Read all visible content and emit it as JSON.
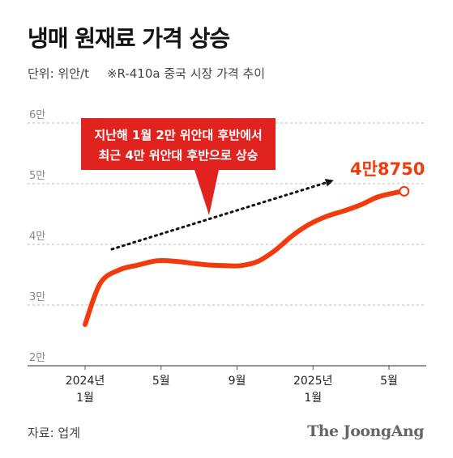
{
  "title": "냉매 원재료 가격 상승",
  "unit_label": "단위: 위안/t",
  "note": "※R-410a 중국 시장 가격 추이",
  "source": "자료: 업계",
  "brand": "The JoongAng",
  "callout": {
    "line1": "지난해 1월 2만 위안대 후반에서",
    "line2": "최근 4만 위안대 후반으로 상승"
  },
  "end_label": "4만8750",
  "colors": {
    "line": "#f23b0c",
    "callout_bg": "#e1231f",
    "grid": "#bbbbbb"
  },
  "chart_data": {
    "type": "line",
    "title": "냉매 원재료 가격 상승",
    "ylabel": "단위: 위안/t",
    "ylim": [
      20000,
      60000
    ],
    "y_ticks": [
      20000,
      30000,
      40000,
      50000,
      60000
    ],
    "y_tick_labels": [
      "2만",
      "3만",
      "4만",
      "5만",
      "6만"
    ],
    "x_ticks": [
      {
        "month_index": 1,
        "line1": "2024년",
        "line2": "1월"
      },
      {
        "month_index": 5,
        "line1": "5월",
        "line2": ""
      },
      {
        "month_index": 9,
        "line1": "9월",
        "line2": ""
      },
      {
        "month_index": 13,
        "line1": "2025년",
        "line2": "1월"
      },
      {
        "month_index": 17,
        "line1": "5월",
        "line2": ""
      }
    ],
    "series": [
      {
        "x": [
          1,
          1.8,
          2.8,
          3.8,
          4.8,
          5.8,
          6.6,
          7.5,
          8.4,
          9.2,
          10.1,
          11.0,
          11.9,
          12.8,
          13.7,
          14.6,
          15.5,
          16.4,
          17.3,
          17.8
        ],
        "values": [
          26800,
          33600,
          35800,
          36600,
          37300,
          37200,
          36900,
          36600,
          36500,
          36500,
          37200,
          39000,
          41400,
          43300,
          44600,
          45500,
          46500,
          47800,
          48500,
          48750
        ]
      }
    ],
    "grid": true
  }
}
